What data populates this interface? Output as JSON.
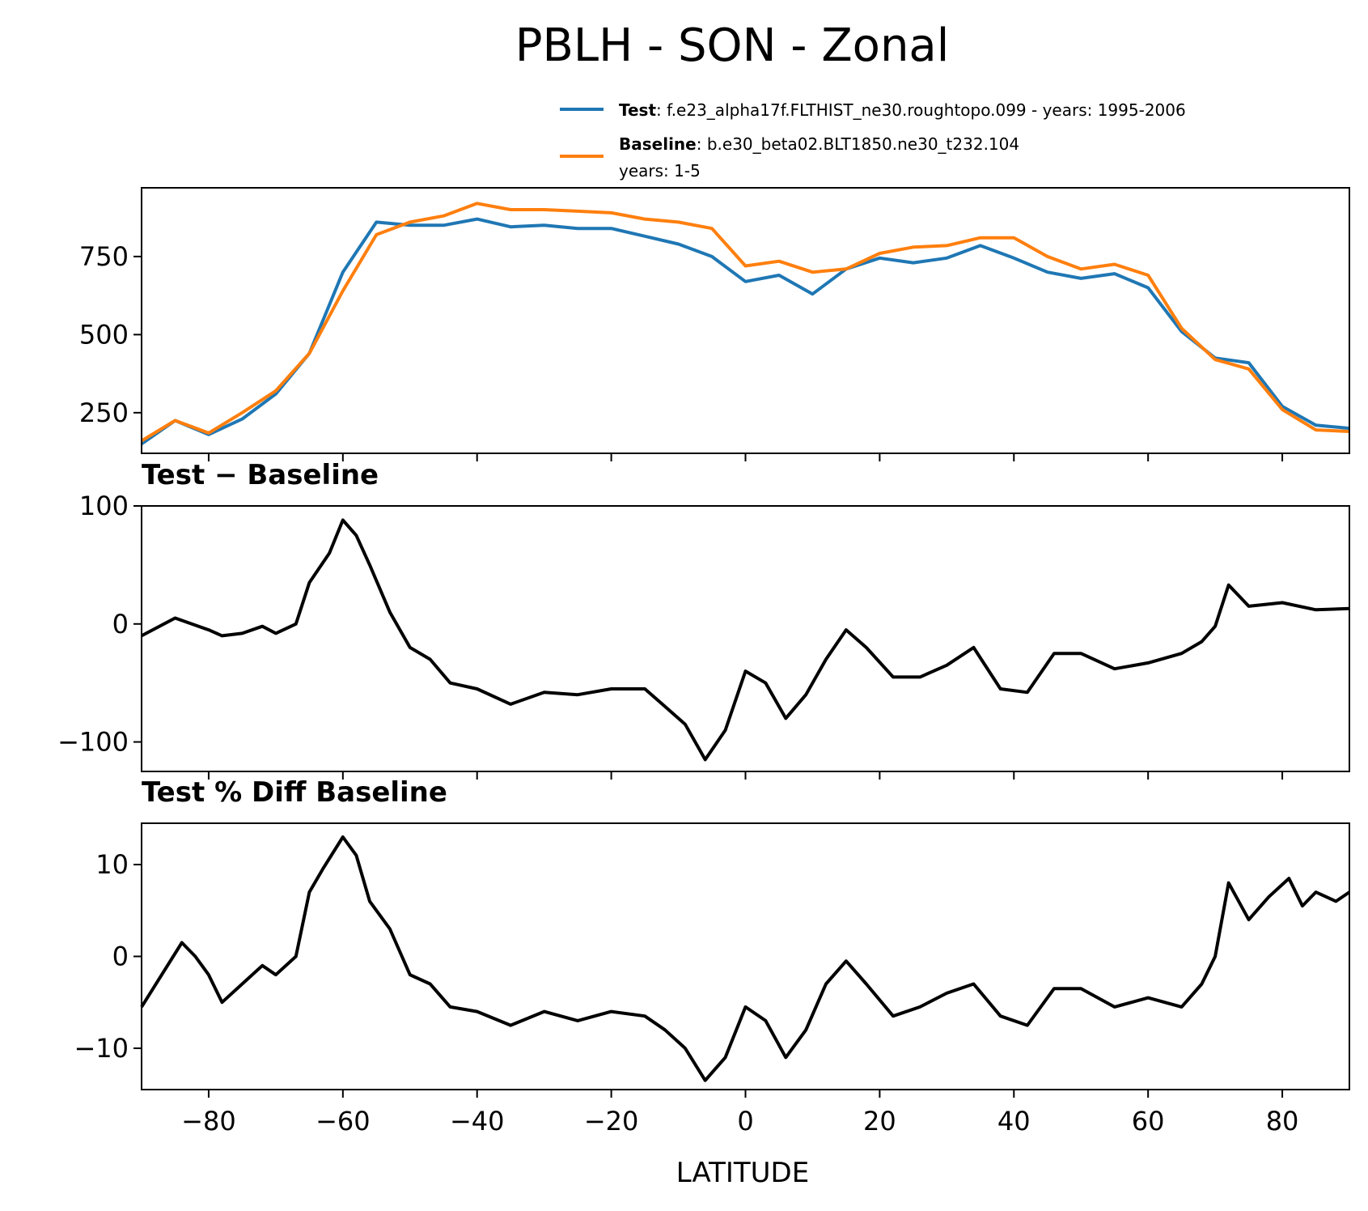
{
  "chart_data": [
    {
      "type": "line",
      "title": "PBLH - SON - Zonal",
      "ylim": [
        120,
        970
      ],
      "yticks": [
        250,
        500,
        750
      ],
      "xlim": [
        -90,
        90
      ],
      "x": [
        -90,
        -85,
        -80,
        -75,
        -70,
        -65,
        -60,
        -55,
        -50,
        -45,
        -40,
        -35,
        -30,
        -25,
        -20,
        -15,
        -10,
        -5,
        0,
        5,
        10,
        15,
        20,
        25,
        30,
        35,
        40,
        45,
        50,
        55,
        60,
        65,
        70,
        75,
        80,
        85,
        90
      ],
      "legend": {
        "placement": "top-right",
        "entries": [
          {
            "name": "Test",
            "text": ": f.e23_alpha17f.FLTHIST_ne30.roughtopo.099 - years: 1995-2006",
            "color": "#1f77b4"
          },
          {
            "name": "Baseline",
            "text": ": b.e30_beta02.BLT1850.ne30_t232.104",
            "text2": "years: 1-5",
            "color": "#ff7f0e"
          }
        ]
      },
      "series": [
        {
          "name": "Test",
          "color": "#1f77b4",
          "values": [
            150,
            225,
            180,
            230,
            310,
            440,
            700,
            860,
            850,
            850,
            870,
            845,
            850,
            840,
            840,
            815,
            790,
            750,
            670,
            690,
            630,
            710,
            745,
            730,
            745,
            785,
            745,
            700,
            680,
            695,
            650,
            510,
            425,
            410,
            270,
            210,
            200
          ]
        },
        {
          "name": "Baseline",
          "color": "#ff7f0e",
          "values": [
            160,
            225,
            185,
            250,
            320,
            440,
            640,
            820,
            860,
            880,
            920,
            900,
            900,
            895,
            890,
            870,
            860,
            840,
            720,
            735,
            700,
            710,
            760,
            780,
            785,
            810,
            810,
            750,
            710,
            725,
            690,
            520,
            420,
            390,
            260,
            195,
            190
          ]
        }
      ]
    },
    {
      "type": "line",
      "title": "Test − Baseline",
      "ylim": [
        -125,
        100
      ],
      "yticks": [
        -100,
        0,
        100
      ],
      "xlim": [
        -90,
        90
      ],
      "x": [
        -90,
        -85,
        -80,
        -78,
        -75,
        -72,
        -70,
        -67,
        -65,
        -62,
        -60,
        -58,
        -56,
        -53,
        -50,
        -47,
        -44,
        -40,
        -35,
        -30,
        -25,
        -20,
        -15,
        -12,
        -9,
        -6,
        -3,
        0,
        3,
        6,
        9,
        12,
        15,
        18,
        22,
        26,
        30,
        34,
        38,
        42,
        46,
        50,
        55,
        60,
        65,
        68,
        70,
        72,
        75,
        80,
        85,
        90
      ],
      "series": [
        {
          "name": "Test − Baseline",
          "color": "#000000",
          "values": [
            -10,
            5,
            -5,
            -10,
            -8,
            -2,
            -8,
            0,
            35,
            60,
            88,
            75,
            50,
            10,
            -20,
            -30,
            -50,
            -55,
            -68,
            -58,
            -60,
            -55,
            -55,
            -70,
            -85,
            -115,
            -90,
            -40,
            -50,
            -80,
            -60,
            -30,
            -5,
            -20,
            -45,
            -45,
            -35,
            -20,
            -55,
            -58,
            -25,
            -25,
            -38,
            -33,
            -25,
            -15,
            -2,
            33,
            15,
            18,
            12,
            13
          ]
        }
      ]
    },
    {
      "type": "line",
      "title": "Test % Diff Baseline",
      "ylim": [
        -14.5,
        14.5
      ],
      "yticks": [
        -10,
        0,
        10
      ],
      "xlim": [
        -90,
        90
      ],
      "xlabel": "LATITUDE",
      "xticks": [
        -80,
        -60,
        -40,
        -20,
        0,
        20,
        40,
        60,
        80
      ],
      "x": [
        -90,
        -87,
        -84,
        -82,
        -80,
        -78,
        -75,
        -72,
        -70,
        -67,
        -65,
        -63,
        -60,
        -58,
        -56,
        -53,
        -50,
        -47,
        -44,
        -40,
        -35,
        -30,
        -25,
        -20,
        -15,
        -12,
        -9,
        -6,
        -3,
        0,
        3,
        6,
        9,
        12,
        15,
        18,
        22,
        26,
        30,
        34,
        38,
        42,
        46,
        50,
        55,
        60,
        65,
        68,
        70,
        72,
        75,
        78,
        81,
        83,
        85,
        88,
        90
      ],
      "series": [
        {
          "name": "Test % Diff Baseline",
          "color": "#000000",
          "values": [
            -5.5,
            -2,
            1.5,
            0,
            -2,
            -5,
            -3,
            -1,
            -2,
            0,
            7,
            9.5,
            13,
            11,
            6,
            3,
            -2,
            -3,
            -5.5,
            -6,
            -7.5,
            -6,
            -7,
            -6,
            -6.5,
            -8,
            -10,
            -13.5,
            -11,
            -5.5,
            -7,
            -11,
            -8,
            -3,
            -0.5,
            -3,
            -6.5,
            -5.5,
            -4,
            -3,
            -6.5,
            -7.5,
            -3.5,
            -3.5,
            -5.5,
            -4.5,
            -5.5,
            -3,
            0,
            8,
            4,
            6.5,
            8.5,
            5.5,
            7,
            6,
            7
          ]
        }
      ]
    }
  ]
}
